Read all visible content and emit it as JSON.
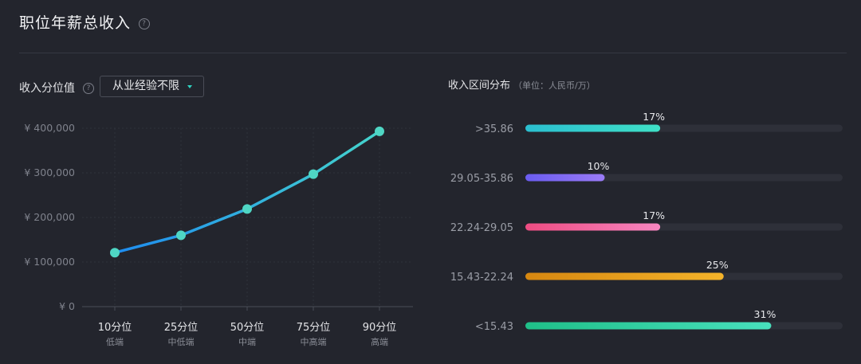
{
  "header": {
    "title": "职位年薪总收入",
    "help_icon": "?"
  },
  "percentile_section": {
    "title": "收入分位值",
    "help_icon": "?",
    "filter": {
      "selected": "从业经验不限"
    }
  },
  "distribution_section": {
    "title": "收入区间分布",
    "unit": "（单位：人民币/万）"
  },
  "colors": {
    "line_start": "#1e8cf0",
    "line_end": "#45d4cc",
    "point": "#4fd6c4",
    "bar_track": "#2e3039",
    "bars": [
      [
        "#2bbfd0",
        "#3fe0c6"
      ],
      [
        "#6a5cf0",
        "#9a7bf6"
      ],
      [
        "#ee4c82",
        "#f686c0"
      ],
      [
        "#d68710",
        "#f5b42a"
      ],
      [
        "#1fbf88",
        "#48e0bd"
      ]
    ]
  },
  "chart_data": [
    {
      "type": "line",
      "x": [
        "10分位",
        "25分位",
        "50分位",
        "75分位",
        "90分位"
      ],
      "x_sublabels": [
        "低端",
        "中低端",
        "中端",
        "中高端",
        "高端"
      ],
      "values": [
        121000,
        160000,
        219000,
        297000,
        393000
      ],
      "yticks": [
        0,
        100000,
        200000,
        300000,
        400000
      ],
      "ytick_labels": [
        "¥ 0",
        "¥ 100,000",
        "¥ 200,000",
        "¥ 300,000",
        "¥ 400,000"
      ],
      "ylim": [
        0,
        400000
      ],
      "grid": true
    },
    {
      "type": "bar",
      "orientation": "horizontal",
      "categories": [
        ">35.86",
        "29.05-35.86",
        "22.24-29.05",
        "15.43-22.24",
        "<15.43"
      ],
      "values": [
        17,
        10,
        17,
        25,
        31
      ],
      "value_labels": [
        "17%",
        "10%",
        "17%",
        "25%",
        "31%"
      ],
      "xlim": [
        0,
        40
      ]
    }
  ]
}
